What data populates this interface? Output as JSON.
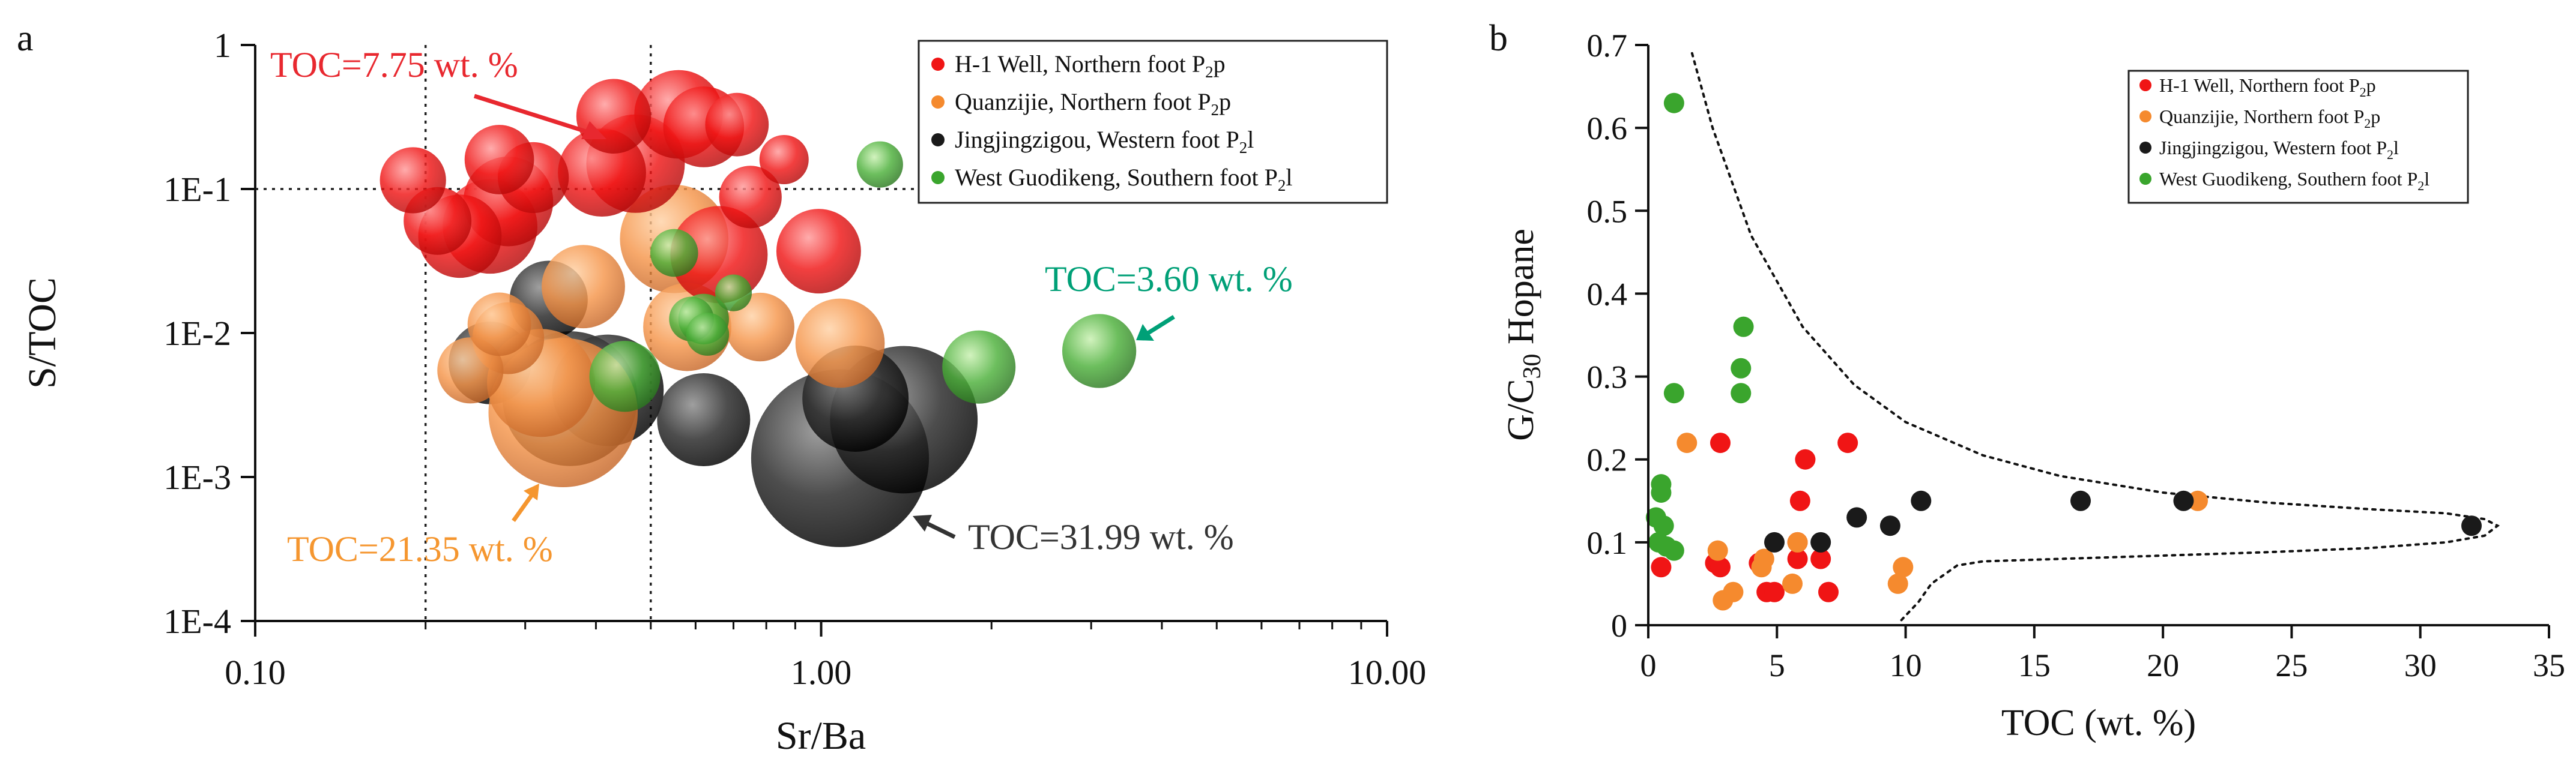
{
  "panels": {
    "a": "a",
    "b": "b"
  },
  "colors": {
    "h1": "#f01515",
    "quanzijie": "#f58a2e",
    "jingjingzigou": "#1a1a1a",
    "guodikeng": "#3aa52d",
    "teal_text": "#00a077",
    "red_text": "#e8282f",
    "orange_text": "#f5962f",
    "dark_text": "#333333"
  },
  "chart_data": [
    {
      "type": "scatter",
      "panel": "a",
      "title": "",
      "xlabel": "Sr/Ba",
      "ylabel": "S/TOC",
      "xscale": "log",
      "yscale": "log",
      "xlim": [
        0.1,
        10
      ],
      "ylim": [
        0.0001,
        1
      ],
      "xticks": [
        0.1,
        1,
        10
      ],
      "xtick_labels": [
        "0.10",
        "1.00",
        "10.00"
      ],
      "yticks": [
        1,
        0.1,
        0.01,
        0.001,
        0.0001
      ],
      "ytick_labels": [
        "1",
        "1E-1",
        "1E-2",
        "1E-3",
        "1E-4"
      ],
      "reference_lines": {
        "x": [
          0.2,
          0.5
        ],
        "y": [
          0.1
        ]
      },
      "marker_size_variable": "TOC (wt. %)",
      "legend": {
        "placement": "top-right",
        "entries": [
          {
            "series": "h1",
            "text": "H-1  Well, Northern foot P",
            "sub": "2",
            "tail": "p"
          },
          {
            "series": "quanzijie",
            "text": "Quanzijie,  Northern foot P",
            "sub": "2",
            "tail": "p"
          },
          {
            "series": "jingjingzigou",
            "text": "Jingjingzigou,  Western foot P",
            "sub": "2",
            "tail": "l"
          },
          {
            "series": "guodikeng",
            "text": "West Guodikeng,  Southern foot P",
            "sub": "2",
            "tail": "l"
          }
        ]
      },
      "annotations": [
        {
          "text": "TOC=7.75 wt. %",
          "color": "red",
          "points_to": [
            0.45,
            0.19
          ],
          "placement": "upper-left"
        },
        {
          "text": "TOC=3.60 wt. %",
          "color": "teal",
          "points_to": [
            3.3,
            0.0085
          ],
          "placement": "right"
        },
        {
          "text": "TOC=21.35 wt. %",
          "color": "orange",
          "points_to": [
            0.33,
            0.0012
          ],
          "placement": "lower-left"
        },
        {
          "text": "TOC=31.99 wt. %",
          "color": "dark",
          "points_to": [
            1.35,
            0.0009
          ],
          "placement": "lower-right"
        }
      ],
      "series": [
        {
          "name": "Jingjingzigou, Western foot P2l",
          "key": "jingjingzigou",
          "points": [
            {
              "x": 1.08,
              "y": 0.00135,
              "toc": 31.99
            },
            {
              "x": 1.4,
              "y": 0.0025,
              "toc": 20.8
            },
            {
              "x": 0.36,
              "y": 0.0035,
              "toc": 16.8
            },
            {
              "x": 1.15,
              "y": 0.0035,
              "toc": 9.4
            },
            {
              "x": 0.42,
              "y": 0.004,
              "toc": 10.6
            },
            {
              "x": 0.62,
              "y": 0.0025,
              "toc": 6.7
            },
            {
              "x": 0.26,
              "y": 0.0062,
              "toc": 4.9
            },
            {
              "x": 0.33,
              "y": 0.017,
              "toc": 4.2
            }
          ]
        },
        {
          "name": "Quanzijie, Northern foot P2p",
          "key": "quanzijie",
          "points": [
            {
              "x": 0.35,
              "y": 0.0028,
              "toc": 21.35
            },
            {
              "x": 0.55,
              "y": 0.045,
              "toc": 9.9
            },
            {
              "x": 0.32,
              "y": 0.0045,
              "toc": 9.8
            },
            {
              "x": 1.08,
              "y": 0.0085,
              "toc": 6.0
            },
            {
              "x": 0.58,
              "y": 0.011,
              "toc": 5.8
            },
            {
              "x": 0.38,
              "y": 0.021,
              "toc": 5.0
            },
            {
              "x": 0.28,
              "y": 0.0092,
              "toc": 3.3
            },
            {
              "x": 0.78,
              "y": 0.011,
              "toc": 2.9
            },
            {
              "x": 0.24,
              "y": 0.0055,
              "toc": 2.6
            },
            {
              "x": 0.27,
              "y": 0.0115,
              "toc": 2.3
            }
          ]
        },
        {
          "name": "H-1 Well, Northern foot P2p",
          "key": "h1",
          "points": [
            {
              "x": 0.47,
              "y": 0.15,
              "toc": 7.75
            },
            {
              "x": 0.66,
              "y": 0.035,
              "toc": 7.5
            },
            {
              "x": 0.26,
              "y": 0.055,
              "toc": 7.0
            },
            {
              "x": 0.28,
              "y": 0.082,
              "toc": 6.1
            },
            {
              "x": 0.56,
              "y": 0.33,
              "toc": 5.9
            },
            {
              "x": 0.41,
              "y": 0.13,
              "toc": 5.8
            },
            {
              "x": 0.99,
              "y": 0.037,
              "toc": 5.2
            },
            {
              "x": 0.23,
              "y": 0.047,
              "toc": 5.0
            },
            {
              "x": 0.62,
              "y": 0.27,
              "toc": 4.6
            },
            {
              "x": 0.43,
              "y": 0.32,
              "toc": 3.7
            },
            {
              "x": 0.31,
              "y": 0.12,
              "toc": 3.2
            },
            {
              "x": 0.27,
              "y": 0.16,
              "toc": 3.0
            },
            {
              "x": 0.21,
              "y": 0.06,
              "toc": 2.8
            },
            {
              "x": 0.19,
              "y": 0.115,
              "toc": 2.6
            },
            {
              "x": 0.71,
              "y": 0.28,
              "toc": 2.3
            },
            {
              "x": 0.75,
              "y": 0.088,
              "toc": 2.2
            },
            {
              "x": 0.86,
              "y": 0.16,
              "toc": 1.0
            }
          ]
        },
        {
          "name": "West Guodikeng, Southern foot P2l",
          "key": "guodikeng",
          "points": [
            {
              "x": 3.1,
              "y": 0.0075,
              "toc": 3.6
            },
            {
              "x": 1.9,
              "y": 0.0058,
              "toc": 3.5
            },
            {
              "x": 0.45,
              "y": 0.005,
              "toc": 3.2
            },
            {
              "x": 0.62,
              "y": 0.0125,
              "toc": 1.1
            },
            {
              "x": 0.55,
              "y": 0.036,
              "toc": 0.9
            },
            {
              "x": 0.59,
              "y": 0.0125,
              "toc": 0.7
            },
            {
              "x": 0.63,
              "y": 0.0098,
              "toc": 0.6
            },
            {
              "x": 1.27,
              "y": 0.148,
              "toc": 0.8
            },
            {
              "x": 0.7,
              "y": 0.019,
              "toc": 0.3
            }
          ]
        }
      ]
    },
    {
      "type": "scatter",
      "panel": "b",
      "title": "",
      "xlabel": "TOC (wt. %)",
      "ylabel": "G/C30 Hopane",
      "ylabel_parts": {
        "pre": "G/C",
        "sub": "30",
        "post": " Hopane"
      },
      "xlim": [
        0,
        35
      ],
      "ylim": [
        0,
        0.7
      ],
      "xticks": [
        0,
        5,
        10,
        15,
        20,
        25,
        30,
        35
      ],
      "xtick_labels": [
        "0",
        "5",
        "10",
        "15",
        "20",
        "25",
        "30",
        "35"
      ],
      "yticks": [
        0,
        0.1,
        0.2,
        0.3,
        0.4,
        0.5,
        0.6,
        0.7
      ],
      "ytick_labels": [
        "0",
        "0.1",
        "0.2",
        "0.3",
        "0.4",
        "0.5",
        "0.6",
        "0.7"
      ],
      "envelope": {
        "style": "dotted",
        "upper": [
          [
            1.7,
            0.69
          ],
          [
            2.5,
            0.6
          ],
          [
            4,
            0.47
          ],
          [
            6,
            0.36
          ],
          [
            8,
            0.29
          ],
          [
            10,
            0.245
          ],
          [
            13,
            0.205
          ],
          [
            16,
            0.18
          ],
          [
            20,
            0.16
          ],
          [
            24,
            0.148
          ],
          [
            28,
            0.14
          ],
          [
            31,
            0.135
          ],
          [
            32.5,
            0.128
          ],
          [
            33,
            0.12
          ]
        ],
        "lower": [
          [
            33,
            0.12
          ],
          [
            32.5,
            0.108
          ],
          [
            31,
            0.1
          ],
          [
            28,
            0.093
          ],
          [
            24,
            0.088
          ],
          [
            20,
            0.084
          ],
          [
            16,
            0.08
          ],
          [
            13,
            0.077
          ],
          [
            12,
            0.072
          ],
          [
            11,
            0.05
          ],
          [
            10.5,
            0.028
          ],
          [
            9.8,
            0.005
          ]
        ]
      },
      "legend": {
        "placement": "top-right",
        "entries": [
          {
            "series": "h1",
            "text": "H-1  Well, Northern foot P",
            "sub": "2",
            "tail": "p"
          },
          {
            "series": "quanzijie",
            "text": "Quanzijie,  Northern foot P",
            "sub": "2",
            "tail": "p"
          },
          {
            "series": "jingjingzigou",
            "text": "Jingjingzigou,  Western foot P",
            "sub": "2",
            "tail": "l"
          },
          {
            "series": "guodikeng",
            "text": "West Guodikeng,  Southern foot P",
            "sub": "2",
            "tail": "l"
          }
        ]
      },
      "series": [
        {
          "name": "West Guodikeng, Southern foot P2l",
          "key": "guodikeng",
          "points": [
            [
              1.0,
              0.63
            ],
            [
              3.7,
              0.36
            ],
            [
              3.6,
              0.31
            ],
            [
              3.6,
              0.28
            ],
            [
              1.0,
              0.28
            ],
            [
              0.5,
              0.17
            ],
            [
              0.5,
              0.16
            ],
            [
              0.3,
              0.13
            ],
            [
              0.6,
              0.12
            ],
            [
              0.4,
              0.1
            ],
            [
              0.7,
              0.095
            ],
            [
              1.0,
              0.09
            ]
          ]
        },
        {
          "name": "H-1 Well, Northern foot P2p",
          "key": "h1",
          "points": [
            [
              2.8,
              0.22
            ],
            [
              7.75,
              0.22
            ],
            [
              6.1,
              0.2
            ],
            [
              5.9,
              0.15
            ],
            [
              0.5,
              0.07
            ],
            [
              2.6,
              0.075
            ],
            [
              2.8,
              0.07
            ],
            [
              4.6,
              0.04
            ],
            [
              4.9,
              0.04
            ],
            [
              5.8,
              0.08
            ],
            [
              6.7,
              0.08
            ],
            [
              7.0,
              0.04
            ],
            [
              4.3,
              0.075
            ],
            [
              5.8,
              0.1
            ]
          ]
        },
        {
          "name": "Quanzijie, Northern foot P2p",
          "key": "quanzijie",
          "points": [
            [
              1.5,
              0.22
            ],
            [
              21.35,
              0.15
            ],
            [
              2.7,
              0.09
            ],
            [
              4.4,
              0.07
            ],
            [
              4.5,
              0.08
            ],
            [
              2.9,
              0.03
            ],
            [
              3.3,
              0.04
            ],
            [
              5.6,
              0.05
            ],
            [
              5.8,
              0.1
            ],
            [
              9.7,
              0.05
            ],
            [
              9.9,
              0.07
            ]
          ]
        },
        {
          "name": "Jingjingzigou, Western foot P2l",
          "key": "jingjingzigou",
          "points": [
            [
              4.9,
              0.1
            ],
            [
              6.7,
              0.1
            ],
            [
              8.1,
              0.13
            ],
            [
              9.4,
              0.12
            ],
            [
              10.6,
              0.15
            ],
            [
              16.8,
              0.15
            ],
            [
              20.8,
              0.15
            ],
            [
              31.99,
              0.12
            ]
          ]
        }
      ]
    }
  ]
}
